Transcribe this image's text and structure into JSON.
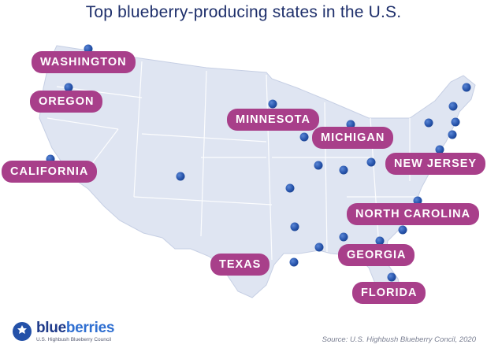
{
  "title": "Top blueberry-producing states in the U.S.",
  "labels": [
    {
      "id": "washington",
      "text": "WASHINGTON"
    },
    {
      "id": "oregon",
      "text": "OREGON"
    },
    {
      "id": "california",
      "text": "CALIFORNIA"
    },
    {
      "id": "minnesota",
      "text": "MINNESOTA"
    },
    {
      "id": "michigan",
      "text": "MICHIGAN"
    },
    {
      "id": "new-jersey",
      "text": "NEW JERSEY"
    },
    {
      "id": "north-carolina",
      "text": "NORTH CAROLINA"
    },
    {
      "id": "texas",
      "text": "TEXAS"
    },
    {
      "id": "georgia",
      "text": "GEORGIA"
    },
    {
      "id": "florida",
      "text": "FLORIDA"
    }
  ],
  "logo": {
    "word_a": "blue",
    "word_b": "berries",
    "subtitle": "U.S. Highbush Blueberry Council"
  },
  "source": "Source: U.S. Highbush Blueberry Concil, 2020",
  "colors": {
    "label_bg": "#a83f8a",
    "map_fill": "#dfe5f2",
    "dot": "#2451a8",
    "title": "#1e2f6b"
  }
}
